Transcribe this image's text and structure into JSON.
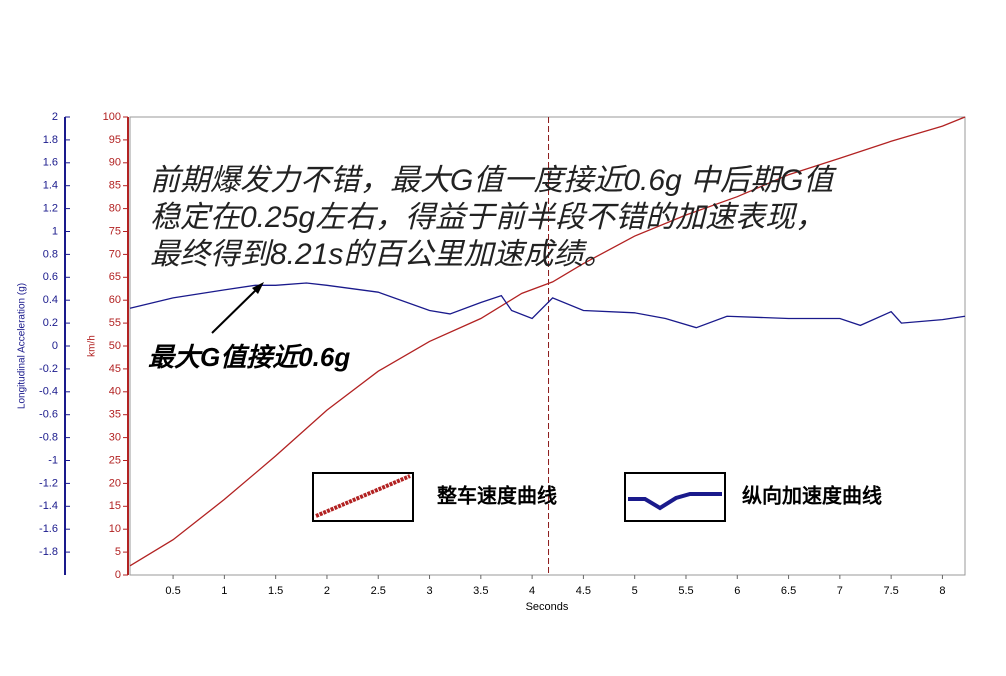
{
  "chart_data": {
    "type": "line",
    "annotation_lines": [
      "前期爆发力不错，最大G值一度接近0.6g 中后期G值",
      "稳定在0.25g左右，得益于前半段不错的加速表现，",
      "最终得到8.21s的百公里加速成绩。"
    ],
    "callout": "最大G值接近0.6g",
    "x_label": "Seconds",
    "y_label": "km/h",
    "y2_label": "Longitudinal Acceleration (g)",
    "xlim": [
      0.08,
      8.22
    ],
    "xticks": [
      0.5,
      1,
      1.5,
      2,
      2.5,
      3,
      3.5,
      4,
      4.5,
      5,
      5.5,
      6,
      6.5,
      7,
      7.5,
      8
    ],
    "ylim": [
      0,
      100
    ],
    "yticks": [
      0,
      5,
      10,
      15,
      20,
      25,
      30,
      35,
      40,
      45,
      50,
      55,
      60,
      65,
      70,
      75,
      80,
      85,
      90,
      95,
      100
    ],
    "y2lim": [
      -2,
      2
    ],
    "y2ticks": [
      2,
      1.8,
      1.6,
      1.4,
      1.2,
      1,
      0.8,
      0.6,
      0.4,
      0.2,
      0,
      -0.2,
      -0.4,
      -0.6,
      -0.8,
      -1,
      -1.2,
      -1.4,
      -1.6,
      -1.8
    ],
    "marker_x": 4.16,
    "series": [
      {
        "name": "整车速度曲线",
        "color": "#b22222",
        "x": [
          0.08,
          0.5,
          1,
          1.5,
          2,
          2.5,
          3,
          3.5,
          3.9,
          4.2,
          4.5,
          5,
          5.5,
          6,
          6.5,
          7,
          7.5,
          8,
          8.22
        ],
        "values": [
          2,
          7.7,
          16.5,
          26,
          36,
          44.5,
          51,
          56,
          61.5,
          64,
          68,
          74,
          78.6,
          82.6,
          87.4,
          91,
          94.7,
          98,
          100
        ]
      },
      {
        "name": "纵向加速度曲线",
        "color": "#1a1a8c",
        "axis": "y2",
        "x": [
          0.08,
          0.5,
          1,
          1.3,
          1.5,
          1.8,
          2,
          2.5,
          3,
          3.2,
          3.5,
          3.7,
          3.8,
          4,
          4.2,
          4.5,
          5,
          5.3,
          5.6,
          5.9,
          6.5,
          7,
          7.2,
          7.5,
          7.6,
          8,
          8.22
        ],
        "values": [
          0.33,
          0.42,
          0.49,
          0.53,
          0.53,
          0.55,
          0.53,
          0.47,
          0.31,
          0.28,
          0.38,
          0.44,
          0.31,
          0.24,
          0.42,
          0.31,
          0.29,
          0.24,
          0.16,
          0.26,
          0.24,
          0.24,
          0.18,
          0.3,
          0.2,
          0.23,
          0.26
        ]
      }
    ]
  }
}
